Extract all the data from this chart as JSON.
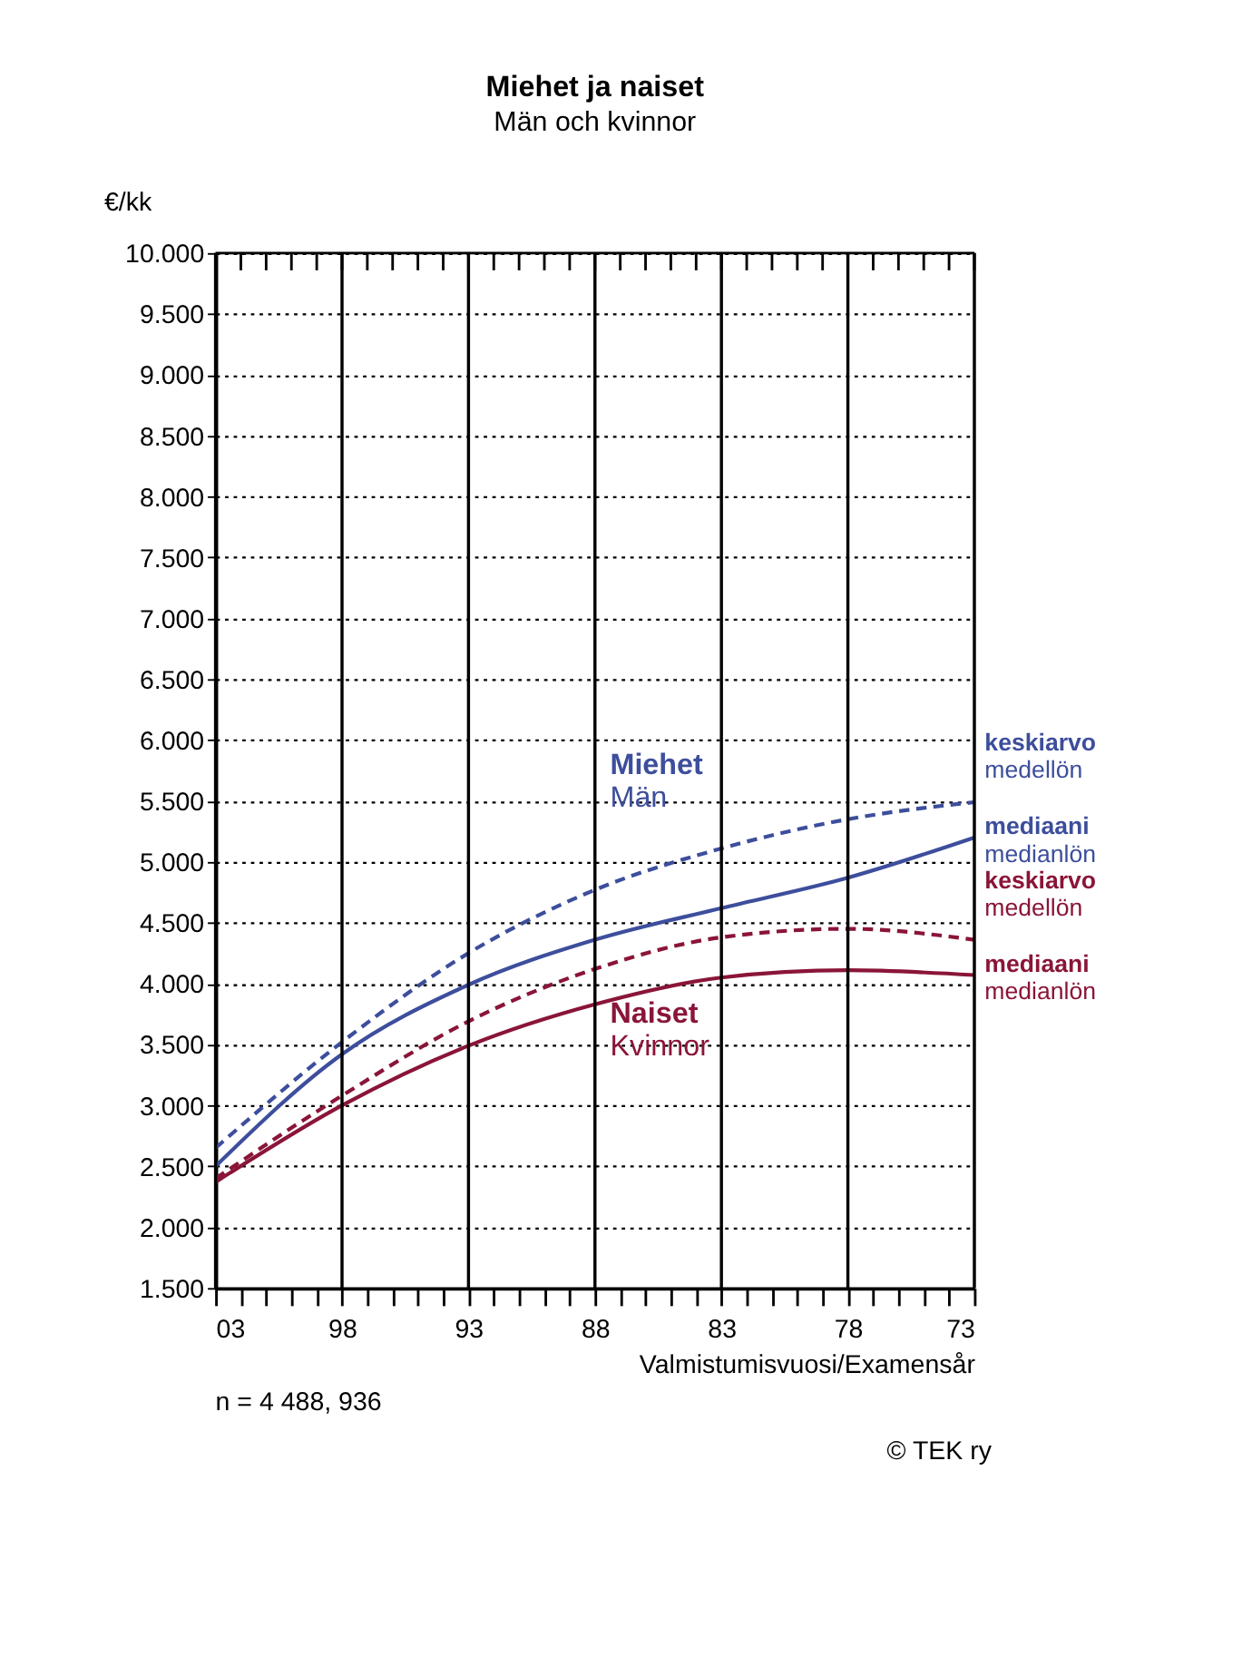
{
  "chart_data": {
    "type": "line",
    "title": "Miehet ja naiset",
    "subtitle": "Män och kvinnor",
    "xlabel": "Valmistumisvuosi/Examensår",
    "ylabel": "€/kk",
    "x": [
      2003,
      1998,
      1993,
      1988,
      1983,
      1978,
      1973
    ],
    "series": [
      {
        "name": "keskiarvo\nmedellön",
        "color": "#3d4e9c",
        "line_style": "dashed",
        "values": [
          2650,
          3520,
          4250,
          4770,
          5110,
          5350,
          5490
        ]
      },
      {
        "name": "mediaani\nmedianlön",
        "color": "#3d4e9c",
        "line_style": "solid",
        "values": [
          2500,
          3420,
          3990,
          4360,
          4620,
          4870,
          5200
        ]
      },
      {
        "name": "keskiarvo\nmedellön",
        "color": "#8a1538",
        "line_style": "dashed",
        "values": [
          2400,
          3080,
          3690,
          4120,
          4380,
          4450,
          4360
        ]
      },
      {
        "name": "mediaani\nmedianlön",
        "color": "#8a1538",
        "line_style": "solid",
        "values": [
          2370,
          3000,
          3490,
          3830,
          4050,
          4110,
          4070
        ]
      }
    ],
    "xlim": [
      2003,
      1973
    ],
    "xticks": [
      {
        "value": 2003,
        "label": "03"
      },
      {
        "value": 2002,
        "label": null
      },
      {
        "value": 2001,
        "label": null
      },
      {
        "value": 2000,
        "label": null
      },
      {
        "value": 1999,
        "label": null
      },
      {
        "value": 1998,
        "label": "98"
      },
      {
        "value": 1997,
        "label": null
      },
      {
        "value": 1996,
        "label": null
      },
      {
        "value": 1995,
        "label": null
      },
      {
        "value": 1994,
        "label": null
      },
      {
        "value": 1993,
        "label": "93"
      },
      {
        "value": 1992,
        "label": null
      },
      {
        "value": 1991,
        "label": null
      },
      {
        "value": 1990,
        "label": null
      },
      {
        "value": 1989,
        "label": null
      },
      {
        "value": 1988,
        "label": "88"
      },
      {
        "value": 1987,
        "label": null
      },
      {
        "value": 1986,
        "label": null
      },
      {
        "value": 1985,
        "label": null
      },
      {
        "value": 1984,
        "label": null
      },
      {
        "value": 1983,
        "label": "83"
      },
      {
        "value": 1982,
        "label": null
      },
      {
        "value": 1981,
        "label": null
      },
      {
        "value": 1980,
        "label": null
      },
      {
        "value": 1979,
        "label": null
      },
      {
        "value": 1978,
        "label": "78"
      },
      {
        "value": 1977,
        "label": null
      },
      {
        "value": 1976,
        "label": null
      },
      {
        "value": 1975,
        "label": null
      },
      {
        "value": 1974,
        "label": null
      },
      {
        "value": 1973,
        "label": "73"
      }
    ],
    "ylim": [
      1500,
      10000
    ],
    "yticks": [
      {
        "value": 1500,
        "label": "1.500"
      },
      {
        "value": 2000,
        "label": "2.000"
      },
      {
        "value": 2500,
        "label": "2.500"
      },
      {
        "value": 3000,
        "label": "3.000"
      },
      {
        "value": 3500,
        "label": "3.500"
      },
      {
        "value": 4000,
        "label": "4.000"
      },
      {
        "value": 4500,
        "label": "4.500"
      },
      {
        "value": 5000,
        "label": "5.000"
      },
      {
        "value": 5500,
        "label": "5.500"
      },
      {
        "value": 6000,
        "label": "6.000"
      },
      {
        "value": 6500,
        "label": "6.500"
      },
      {
        "value": 7000,
        "label": "7.000"
      },
      {
        "value": 7500,
        "label": "7.500"
      },
      {
        "value": 8000,
        "label": "8.000"
      },
      {
        "value": 8500,
        "label": "8.500"
      },
      {
        "value": 9000,
        "label": "9.000"
      },
      {
        "value": 9500,
        "label": "9.500"
      },
      {
        "value": 10000,
        "label": "10.000"
      }
    ],
    "annotations": [
      "Miehet\nMän",
      "Naiset\nKvinnor",
      "n = 4 488, 936",
      "© TEK ry"
    ],
    "grid": true,
    "marker": "none"
  }
}
